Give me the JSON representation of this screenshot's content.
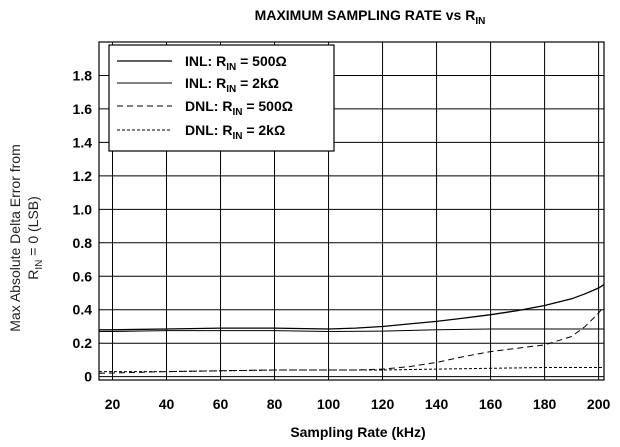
{
  "chart_data": {
    "type": "line",
    "title": "MAXIMUM SAMPLING RATE vs R",
    "title_sub": "IN",
    "xlabel": "Sampling Rate (kHz)",
    "ylabel_line1": "Max Absolute Delta Error from",
    "ylabel_line2_pre": "R",
    "ylabel_line2_sub": "IN",
    "ylabel_line2_post": " = 0 (LSB)",
    "xlim": [
      15,
      202
    ],
    "ylim": [
      -0.02,
      2.0
    ],
    "xticks": [
      20,
      40,
      60,
      80,
      100,
      120,
      140,
      160,
      180,
      200
    ],
    "xtick_labels": [
      "20",
      "40",
      "60",
      "80",
      "100",
      "120",
      "140",
      "160",
      "180",
      "200"
    ],
    "yticks": [
      0,
      0.2,
      0.4,
      0.6,
      0.8,
      1.0,
      1.2,
      1.4,
      1.6,
      1.8
    ],
    "ytick_labels": [
      "0",
      "0.2",
      "0.4",
      "0.6",
      "0.8",
      "1.0",
      "1.2",
      "1.4",
      "1.6",
      "1.8"
    ],
    "grid": true,
    "legend_position": "top-left",
    "series": [
      {
        "name_pre": "INL: R",
        "name_sub": "IN",
        "name_post": " = 500Ω",
        "style": "solid",
        "x": [
          15,
          20,
          40,
          60,
          80,
          100,
          110,
          120,
          130,
          140,
          150,
          160,
          170,
          180,
          190,
          195,
          200,
          202
        ],
        "y": [
          0.28,
          0.28,
          0.285,
          0.29,
          0.29,
          0.285,
          0.29,
          0.3,
          0.315,
          0.33,
          0.35,
          0.37,
          0.395,
          0.425,
          0.465,
          0.495,
          0.53,
          0.55
        ]
      },
      {
        "name_pre": "INL: R",
        "name_sub": "IN",
        "name_post": " = 2kΩ",
        "style": "solid",
        "x": [
          15,
          20,
          40,
          60,
          80,
          100,
          120,
          140,
          160,
          180,
          200,
          202
        ],
        "y": [
          0.27,
          0.27,
          0.275,
          0.275,
          0.275,
          0.27,
          0.272,
          0.28,
          0.285,
          0.285,
          0.285,
          0.285
        ]
      },
      {
        "name_pre": "DNL: R",
        "name_sub": "IN",
        "name_post": " = 500Ω",
        "style": "dashed",
        "x": [
          15,
          20,
          40,
          60,
          80,
          100,
          110,
          120,
          130,
          140,
          150,
          160,
          170,
          180,
          190,
          195,
          200,
          202
        ],
        "y": [
          0.02,
          0.022,
          0.03,
          0.035,
          0.04,
          0.04,
          0.04,
          0.045,
          0.06,
          0.085,
          0.12,
          0.15,
          0.17,
          0.19,
          0.24,
          0.3,
          0.38,
          0.42
        ]
      },
      {
        "name_pre": "DNL: R",
        "name_sub": "IN",
        "name_post": " = 2kΩ",
        "style": "finedash",
        "x": [
          15,
          20,
          40,
          60,
          80,
          100,
          120,
          140,
          160,
          180,
          200,
          202
        ],
        "y": [
          0.03,
          0.03,
          0.03,
          0.035,
          0.04,
          0.04,
          0.04,
          0.045,
          0.05,
          0.055,
          0.055,
          0.055
        ]
      }
    ]
  }
}
